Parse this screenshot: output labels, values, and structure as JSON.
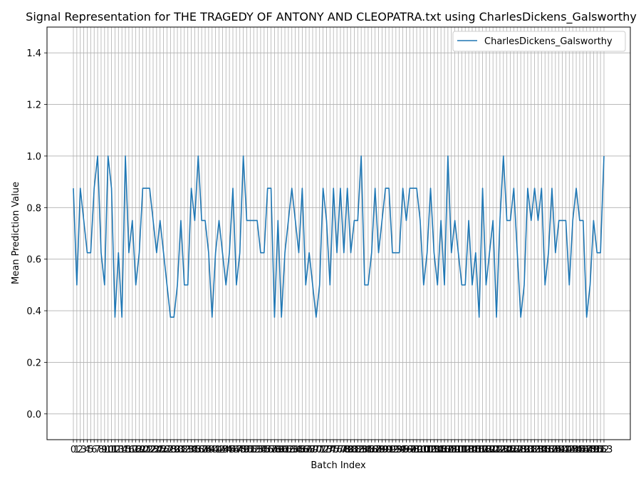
{
  "chart_data": {
    "type": "line",
    "title": "Signal Representation for THE TRAGEDY OF ANTONY AND CLEOPATRA.txt using CharlesDickens_Galsworthy",
    "xlabel": "Batch Index",
    "ylabel": "Mean Prediction Value",
    "ylim": [
      -0.1,
      1.5
    ],
    "yticks": [
      0.0,
      0.2,
      0.4,
      0.6,
      0.8,
      1.0,
      1.2,
      1.4
    ],
    "ytick_labels": [
      "0.0",
      "0.2",
      "0.4",
      "0.6",
      "0.8",
      "1.0",
      "1.2",
      "1.4"
    ],
    "grid": true,
    "legend_position": "top-right",
    "color": "#1f77b4",
    "series": [
      {
        "name": "CharlesDickens_Galsworthy",
        "values": [
          0.875,
          0.5,
          0.875,
          0.75,
          0.625,
          0.625,
          0.875,
          1.0,
          0.625,
          0.5,
          1.0,
          0.875,
          0.375,
          0.625,
          0.375,
          1.0,
          0.625,
          0.75,
          0.5,
          0.625,
          0.875,
          0.875,
          0.875,
          0.75,
          0.625,
          0.75,
          0.625,
          0.5,
          0.375,
          0.375,
          0.5,
          0.75,
          0.5,
          0.5,
          0.875,
          0.75,
          1.0,
          0.75,
          0.75,
          0.625,
          0.375,
          0.625,
          0.75,
          0.625,
          0.5,
          0.625,
          0.875,
          0.5,
          0.625,
          1.0,
          0.75,
          0.75,
          0.75,
          0.75,
          0.625,
          0.625,
          0.875,
          0.875,
          0.375,
          0.75,
          0.375,
          0.625,
          0.75,
          0.875,
          0.75,
          0.625,
          0.875,
          0.5,
          0.625,
          0.5,
          0.375,
          0.5,
          0.875,
          0.75,
          0.5,
          0.875,
          0.625,
          0.875,
          0.625,
          0.875,
          0.625,
          0.75,
          0.75,
          1.0,
          0.5,
          0.5,
          0.625,
          0.875,
          0.625,
          0.75,
          0.875,
          0.875,
          0.625,
          0.625,
          0.625,
          0.875,
          0.75,
          0.875,
          0.875,
          0.875,
          0.75,
          0.5,
          0.625,
          0.875,
          0.625,
          0.5,
          0.75,
          0.5,
          1.0,
          0.625,
          0.75,
          0.625,
          0.5,
          0.5,
          0.75,
          0.5,
          0.625,
          0.375,
          0.875,
          0.5,
          0.625,
          0.75,
          0.375,
          0.75,
          1.0,
          0.75,
          0.75,
          0.875,
          0.625,
          0.375,
          0.5,
          0.875,
          0.75,
          0.875,
          0.75,
          0.875,
          0.5,
          0.625,
          0.875,
          0.625,
          0.75,
          0.75,
          0.75,
          0.5,
          0.75,
          0.875,
          0.75,
          0.75,
          0.375,
          0.5,
          0.75,
          0.625,
          0.625,
          1.0
        ]
      }
    ]
  }
}
